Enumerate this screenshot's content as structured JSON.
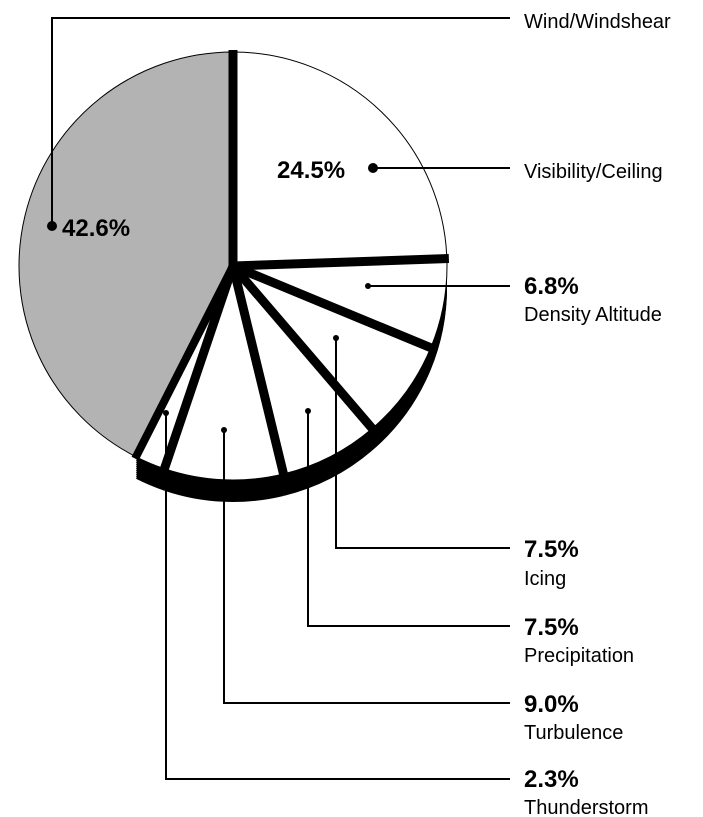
{
  "chart_data": {
    "type": "pie",
    "slices": [
      {
        "label": "Wind/Windshear",
        "value": 42.6,
        "value_label": "42.6%",
        "color": "#b3b3b3"
      },
      {
        "label": "Visibility/Ceiling",
        "value": 24.5,
        "value_label": "24.5%",
        "color": "#ffffff"
      },
      {
        "label": "Density Altitude",
        "value": 6.8,
        "value_label": "6.8%",
        "color": "#ffffff"
      },
      {
        "label": "Icing",
        "value": 7.5,
        "value_label": "7.5%",
        "color": "#ffffff"
      },
      {
        "label": "Precipitation",
        "value": 7.5,
        "value_label": "7.5%",
        "color": "#ffffff"
      },
      {
        "label": "Turbulence",
        "value": 9.0,
        "value_label": "9.0%",
        "color": "#ffffff"
      },
      {
        "label": "Thunderstorm",
        "value": 2.3,
        "value_label": "2.3%",
        "color": "#ffffff"
      }
    ]
  }
}
